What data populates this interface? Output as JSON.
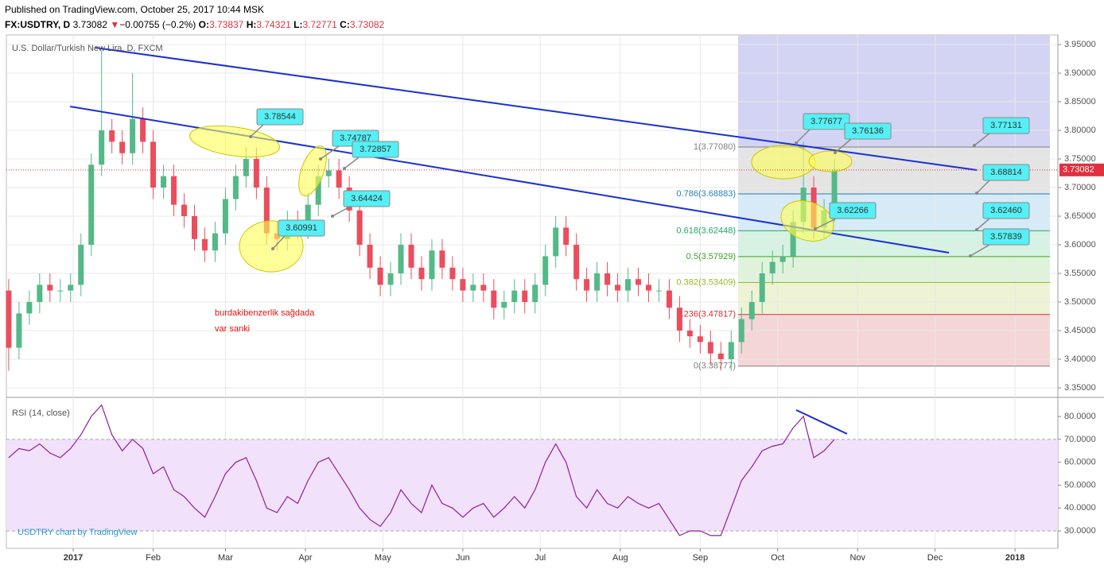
{
  "header": {
    "published": "Published on TradingView.com, October 25, 2017 10:44 MSK",
    "symbol": "FX:USDTRY, D",
    "last": "3.73082",
    "arrow": "▼",
    "change": "−0.00755 (−0.2%)",
    "ohlc": [
      {
        "label": "O:",
        "value": "3.73837"
      },
      {
        "label": "H:",
        "value": "3.74321"
      },
      {
        "label": "L:",
        "value": "3.72771"
      },
      {
        "label": "C:",
        "value": "3.73082"
      }
    ]
  },
  "watermark": "USDTRY chart by TradingView",
  "chart_data": [
    {
      "type": "candlestick",
      "title": "U.S. Dollar/Turkish New Lira, D, FXCM",
      "up_color": "#53b987",
      "down_color": "#eb4d5c",
      "x": [
        -24,
        -20,
        -16,
        -12,
        -8,
        -4,
        0,
        4,
        8,
        12,
        16,
        20,
        24,
        28,
        32,
        36,
        40,
        44,
        48,
        52,
        56,
        60,
        64,
        68,
        72,
        76,
        80,
        84,
        88,
        92,
        96,
        100,
        104,
        108,
        112,
        116,
        120,
        124,
        128,
        132,
        136,
        140,
        144,
        148,
        152,
        156,
        160,
        164,
        168,
        172,
        176,
        180,
        184,
        188,
        192,
        196,
        200,
        204,
        208,
        212,
        216,
        220,
        224,
        228,
        232,
        236,
        240,
        244,
        248,
        252,
        256,
        260,
        264,
        268,
        272,
        276,
        280,
        284,
        288,
        292,
        296
      ],
      "open": [
        3.52,
        3.42,
        3.48,
        3.5,
        3.53,
        3.52,
        3.52,
        3.53,
        3.6,
        3.74,
        3.8,
        3.78,
        3.76,
        3.82,
        3.78,
        3.7,
        3.72,
        3.67,
        3.65,
        3.61,
        3.59,
        3.62,
        3.68,
        3.72,
        3.75,
        3.7,
        3.62,
        3.61,
        3.64,
        3.63,
        3.67,
        3.72,
        3.73,
        3.7,
        3.66,
        3.6,
        3.56,
        3.53,
        3.55,
        3.6,
        3.56,
        3.54,
        3.59,
        3.56,
        3.54,
        3.52,
        3.53,
        3.52,
        3.49,
        3.5,
        3.52,
        3.5,
        3.53,
        3.58,
        3.63,
        3.6,
        3.54,
        3.52,
        3.55,
        3.53,
        3.52,
        3.54,
        3.53,
        3.52,
        3.52,
        3.49,
        3.45,
        3.44,
        3.43,
        3.41,
        3.4,
        3.43,
        3.47,
        3.5,
        3.55,
        3.57,
        3.58,
        3.64,
        3.7,
        3.63,
        3.66
      ],
      "high": [
        3.54,
        3.5,
        3.52,
        3.55,
        3.55,
        3.54,
        3.55,
        3.62,
        3.76,
        3.94,
        3.82,
        3.8,
        3.9,
        3.84,
        3.8,
        3.74,
        3.74,
        3.69,
        3.67,
        3.63,
        3.64,
        3.7,
        3.74,
        3.77,
        3.77,
        3.72,
        3.64,
        3.66,
        3.66,
        3.69,
        3.74,
        3.75,
        3.75,
        3.72,
        3.68,
        3.62,
        3.58,
        3.57,
        3.62,
        3.62,
        3.58,
        3.61,
        3.61,
        3.58,
        3.56,
        3.55,
        3.55,
        3.54,
        3.52,
        3.54,
        3.54,
        3.55,
        3.6,
        3.65,
        3.65,
        3.62,
        3.56,
        3.57,
        3.57,
        3.55,
        3.56,
        3.56,
        3.55,
        3.54,
        3.54,
        3.51,
        3.47,
        3.46,
        3.45,
        3.43,
        3.45,
        3.49,
        3.52,
        3.57,
        3.59,
        3.6,
        3.66,
        3.78,
        3.72,
        3.68,
        3.75
      ],
      "low": [
        3.38,
        3.4,
        3.46,
        3.48,
        3.5,
        3.5,
        3.5,
        3.51,
        3.58,
        3.72,
        3.76,
        3.74,
        3.74,
        3.76,
        3.68,
        3.68,
        3.65,
        3.63,
        3.59,
        3.57,
        3.57,
        3.6,
        3.66,
        3.7,
        3.68,
        3.6,
        3.59,
        3.59,
        3.61,
        3.61,
        3.65,
        3.7,
        3.68,
        3.64,
        3.58,
        3.54,
        3.51,
        3.51,
        3.53,
        3.54,
        3.52,
        3.52,
        3.54,
        3.52,
        3.5,
        3.5,
        3.5,
        3.47,
        3.47,
        3.48,
        3.48,
        3.48,
        3.51,
        3.56,
        3.58,
        3.52,
        3.5,
        3.5,
        3.51,
        3.5,
        3.5,
        3.51,
        3.5,
        3.5,
        3.47,
        3.43,
        3.42,
        3.41,
        3.39,
        3.38,
        3.38,
        3.41,
        3.45,
        3.48,
        3.53,
        3.55,
        3.56,
        3.62,
        3.61,
        3.61,
        3.64
      ],
      "close": [
        3.42,
        3.48,
        3.5,
        3.53,
        3.52,
        3.52,
        3.53,
        3.6,
        3.74,
        3.8,
        3.78,
        3.76,
        3.82,
        3.78,
        3.7,
        3.72,
        3.67,
        3.65,
        3.61,
        3.59,
        3.62,
        3.68,
        3.72,
        3.75,
        3.7,
        3.62,
        3.61,
        3.64,
        3.63,
        3.67,
        3.72,
        3.73,
        3.7,
        3.66,
        3.6,
        3.56,
        3.53,
        3.55,
        3.6,
        3.56,
        3.54,
        3.59,
        3.56,
        3.54,
        3.52,
        3.53,
        3.52,
        3.49,
        3.5,
        3.52,
        3.5,
        3.53,
        3.58,
        3.63,
        3.6,
        3.54,
        3.52,
        3.55,
        3.53,
        3.52,
        3.54,
        3.53,
        3.52,
        3.52,
        3.49,
        3.45,
        3.44,
        3.43,
        3.41,
        3.4,
        3.43,
        3.47,
        3.5,
        3.55,
        3.57,
        3.58,
        3.64,
        3.7,
        3.63,
        3.66,
        3.73082
      ],
      "xlim": [
        -24.9,
        382.6
      ],
      "xticks": [
        {
          "value": 1,
          "label": "2017"
        },
        {
          "value": 32,
          "label": "Feb"
        },
        {
          "value": 60,
          "label": "Mar"
        },
        {
          "value": 91,
          "label": "Apr"
        },
        {
          "value": 121,
          "label": "May"
        },
        {
          "value": 152,
          "label": "Jun"
        },
        {
          "value": 182,
          "label": "Jul"
        },
        {
          "value": 213,
          "label": "Aug"
        },
        {
          "value": 244,
          "label": "Sep"
        },
        {
          "value": 274,
          "label": "Oct"
        },
        {
          "value": 305,
          "label": "Nov"
        },
        {
          "value": 335,
          "label": "Dec"
        },
        {
          "value": 366,
          "label": "2018"
        }
      ],
      "ylim": [
        3.3375,
        3.9667
      ],
      "yticks": [
        {
          "value": 3.35,
          "label": "3.35000"
        },
        {
          "value": 3.4,
          "label": "3.40000"
        },
        {
          "value": 3.45,
          "label": "3.45000"
        },
        {
          "value": 3.5,
          "label": "3.50000"
        },
        {
          "value": 3.55,
          "label": "3.55000"
        },
        {
          "value": 3.6,
          "label": "3.60000"
        },
        {
          "value": 3.65,
          "label": "3.65000"
        },
        {
          "value": 3.7,
          "label": "3.70000"
        },
        {
          "value": 3.75,
          "label": "3.75000"
        },
        {
          "value": 3.8,
          "label": "3.80000"
        },
        {
          "value": 3.85,
          "label": "3.85000"
        },
        {
          "value": 3.9,
          "label": "3.90000"
        },
        {
          "value": 3.95,
          "label": "3.95000"
        }
      ],
      "grid": true,
      "last_price": {
        "value": 3.73082,
        "label": "3.73082",
        "color": "#e0303e"
      },
      "trend_lines": [
        {
          "color": "#1a2fd6",
          "x": [
            9.6,
            351.2
          ],
          "y": [
            3.9444,
            3.7306
          ]
        },
        {
          "color": "#1a2fd6",
          "x": [
            -0.2,
            340.4
          ],
          "y": [
            3.8417,
            3.5861
          ]
        }
      ],
      "fib_range": [
        258.7,
        379.5
      ],
      "top_zone_color": "#d3d3f3",
      "fib_levels": [
        {
          "label": "1(3.77080)",
          "price": 3.7708,
          "color": "#808080",
          "fill": "#e4e4e4"
        },
        {
          "label": "0.786(3.68883)",
          "price": 3.68883,
          "color": "#2a7fb8",
          "fill": "#d7eaf7"
        },
        {
          "label": "0.618(3.62448)",
          "price": 3.62448,
          "color": "#1fa86b",
          "fill": "#d6f2e3"
        },
        {
          "label": "0.5(3.57929)",
          "price": 3.57929,
          "color": "#3da02a",
          "fill": "#dff3da"
        },
        {
          "label": "0.382(3.53409)",
          "price": 3.53409,
          "color": "#9ab82b",
          "fill": "#eef3d6"
        },
        {
          "label": "0.236(3.47817)",
          "price": 3.47817,
          "color": "#d0303a",
          "fill": "#f5d6d6"
        },
        {
          "label": "0(3.38777)",
          "price": 3.38777,
          "color": "#808080",
          "fill": "none"
        }
      ],
      "callouts": [
        {
          "text": "3.78544"
        },
        {
          "text": "3.74787"
        },
        {
          "text": "3.72857"
        },
        {
          "text": "3.64424"
        },
        {
          "text": "3.60991"
        },
        {
          "text": "3.77677"
        },
        {
          "text": "3.76136"
        },
        {
          "text": "3.62266"
        },
        {
          "text": "3.77131"
        },
        {
          "text": "3.68814"
        },
        {
          "text": "3.62460"
        },
        {
          "text": "3.57839"
        }
      ],
      "comment": [
        "burdakibenzerlik sağdada",
        "var sanki"
      ]
    },
    {
      "type": "line",
      "title": "RSI (14, close)",
      "color": "#8e1f9e",
      "band_color": "#f1e1fa",
      "x": [
        -24,
        -20,
        -16,
        -12,
        -8,
        -4,
        0,
        4,
        8,
        12,
        16,
        20,
        24,
        28,
        32,
        36,
        40,
        44,
        48,
        52,
        56,
        60,
        64,
        68,
        72,
        76,
        80,
        84,
        88,
        92,
        96,
        100,
        104,
        108,
        112,
        116,
        120,
        124,
        128,
        132,
        136,
        140,
        144,
        148,
        152,
        156,
        160,
        164,
        168,
        172,
        176,
        180,
        184,
        188,
        192,
        196,
        200,
        204,
        208,
        212,
        216,
        220,
        224,
        228,
        232,
        236,
        240,
        244,
        248,
        252,
        256,
        260,
        264,
        268,
        272,
        276,
        280,
        284,
        288,
        292,
        296
      ],
      "values": [
        62,
        66,
        65,
        68,
        64,
        62,
        66,
        72,
        80,
        85,
        72,
        65,
        70,
        66,
        55,
        58,
        48,
        45,
        40,
        36,
        45,
        55,
        60,
        62,
        52,
        40,
        38,
        45,
        42,
        52,
        60,
        62,
        55,
        48,
        40,
        35,
        32,
        38,
        48,
        42,
        38,
        50,
        42,
        40,
        36,
        40,
        42,
        36,
        40,
        45,
        40,
        48,
        60,
        68,
        60,
        45,
        40,
        48,
        42,
        40,
        45,
        42,
        40,
        42,
        35,
        28,
        30,
        30,
        28,
        28,
        40,
        52,
        58,
        65,
        67,
        68,
        75,
        80,
        62,
        65,
        70
      ],
      "xlim": [
        -24.9,
        382.6
      ],
      "ylim": [
        22.4,
        87.3
      ],
      "yticks": [
        {
          "value": 30,
          "label": "30.0000"
        },
        {
          "value": 40,
          "label": "40.0000"
        },
        {
          "value": 50,
          "label": "50.0000"
        },
        {
          "value": 60,
          "label": "60.0000"
        },
        {
          "value": 70,
          "label": "70.0000"
        },
        {
          "value": 80,
          "label": "80.0000"
        }
      ],
      "levels": [
        70,
        30
      ],
      "trend_lines": [
        {
          "color": "#1a2fd6",
          "x": [
            281.2,
            300.9
          ],
          "y": [
            82.8,
            72.4
          ]
        }
      ]
    }
  ]
}
